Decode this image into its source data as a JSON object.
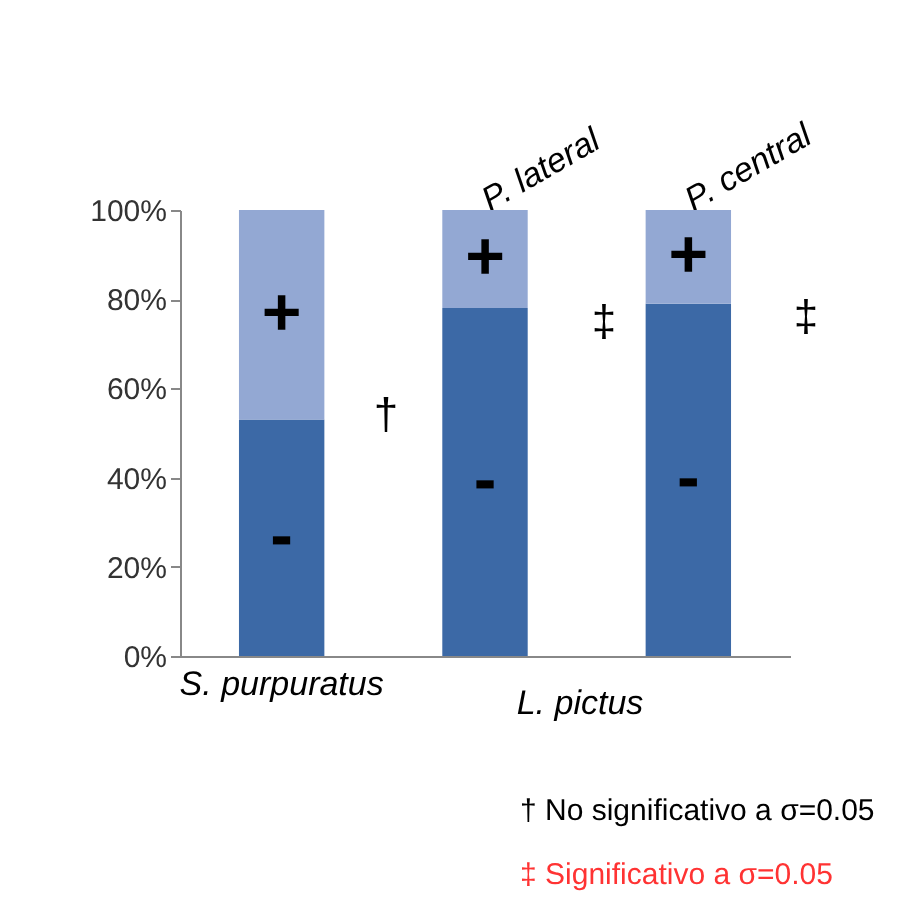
{
  "chart_data": {
    "type": "bar",
    "stacked": true,
    "categories": [
      "S. purpuratus",
      "P. lateral",
      "P. central"
    ],
    "series": [
      {
        "name": "-",
        "color": "#3c69a6",
        "values": [
          53,
          78,
          79
        ]
      },
      {
        "name": "+",
        "color": "#93a8d3",
        "values": [
          47,
          22,
          21
        ]
      }
    ],
    "ylim": [
      0,
      100
    ],
    "yticks": [
      {
        "value": 0,
        "label": "0%"
      },
      {
        "value": 20,
        "label": "20%"
      },
      {
        "value": 40,
        "label": "40%"
      },
      {
        "value": 60,
        "label": "60%"
      },
      {
        "value": 80,
        "label": "80%"
      },
      {
        "value": 100,
        "label": "100%"
      }
    ],
    "grid": false,
    "legend": false,
    "annotations": [
      "L. pictus",
      "†",
      "‡",
      "‡",
      "† No significativo a σ=0.05",
      "‡ Significativo a σ=0.05"
    ]
  }
}
